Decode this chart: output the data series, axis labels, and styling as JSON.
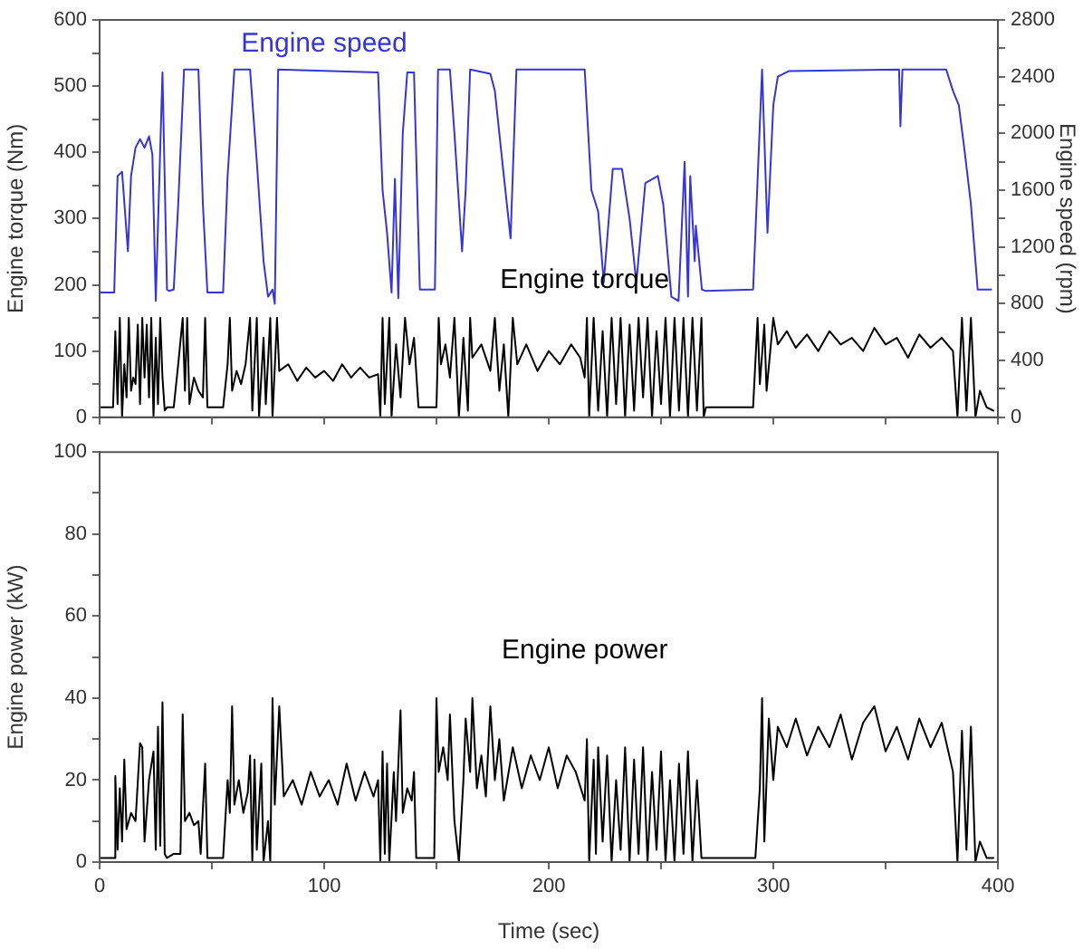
{
  "chart_data": [
    {
      "type": "line",
      "ylabel": "Engine torque (Nm)",
      "y2label": "Engine speed (rpm)",
      "xlim": [
        0,
        400
      ],
      "xticks": [
        0,
        {
          "value": 50,
          "label": null
        },
        100,
        {
          "value": 150,
          "label": null
        },
        200,
        {
          "value": 250,
          "label": null
        },
        300,
        {
          "value": 350,
          "label": null
        },
        400
      ],
      "ylim": [
        0,
        600
      ],
      "yticks": [
        0,
        {
          "value": 50,
          "label": null
        },
        100,
        {
          "value": 150,
          "label": null
        },
        200,
        {
          "value": 250,
          "label": null
        },
        300,
        {
          "value": 350,
          "label": null
        },
        400,
        {
          "value": 450,
          "label": null
        },
        500,
        {
          "value": 550,
          "label": null
        },
        600
      ],
      "y2lim": [
        0,
        2800
      ],
      "y2ticks": [
        0,
        {
          "value": 200,
          "label": null
        },
        400,
        {
          "value": 600,
          "label": null
        },
        800,
        {
          "value": 1000,
          "label": null
        },
        1200,
        {
          "value": 1400,
          "label": null
        },
        1600,
        {
          "value": 1800,
          "label": null
        },
        2000,
        {
          "value": 2200,
          "label": null
        },
        2400,
        {
          "value": 2600,
          "label": null
        },
        2800
      ],
      "tick_labels": "y",
      "series": [
        {
          "name": "Engine speed",
          "color": "#3535d8",
          "axis": "y2",
          "x": [
            0,
            6.5,
            8,
            10,
            12.6,
            14,
            16,
            18,
            20,
            22,
            23.5,
            25,
            28,
            30,
            31,
            33,
            35,
            37.6,
            44,
            46,
            48,
            55,
            57,
            60,
            67,
            70,
            73,
            75,
            77,
            78,
            79.5,
            124,
            126,
            128,
            130,
            131.5,
            133,
            135,
            137,
            140,
            142.6,
            149.3,
            150.7,
            156,
            158,
            161.4,
            163,
            165,
            174,
            176,
            180,
            183,
            185.6,
            216,
            219,
            222,
            224.5,
            228.5,
            232.6,
            236,
            239,
            243,
            248.6,
            251,
            254.6,
            257.8,
            260.5,
            262,
            263,
            265,
            265.5,
            268.2,
            270,
            291,
            295,
            297.4,
            300,
            302,
            307,
            356,
            356.6,
            357.5,
            377,
            380,
            382.6,
            385,
            388,
            391,
            397
          ],
          "values": [
            880,
            880,
            1700,
            1730,
            1170,
            1700,
            1900,
            1960,
            1900,
            1980,
            1850,
            820,
            2430,
            900,
            890,
            900,
            1500,
            2450,
            2450,
            1500,
            880,
            880,
            1700,
            2450,
            2450,
            1800,
            1100,
            850,
            900,
            800,
            2450,
            2430,
            1600,
            1300,
            880,
            1680,
            840,
            2000,
            2430,
            2430,
            900,
            900,
            2450,
            2450,
            2000,
            1170,
            1600,
            2450,
            2420,
            2300,
            1700,
            1260,
            2450,
            2450,
            1600,
            1450,
            950,
            1750,
            1750,
            1400,
            950,
            1650,
            1700,
            1500,
            850,
            820,
            1800,
            850,
            1700,
            1100,
            1350,
            900,
            890,
            900,
            2450,
            1300,
            2200,
            2400,
            2440,
            2450,
            2050,
            2450,
            2450,
            2300,
            2200,
            1900,
            1500,
            900,
            900
          ]
        },
        {
          "name": "Engine torque",
          "color": "#000000",
          "x": [
            0,
            6,
            7,
            8,
            9,
            10,
            11,
            12,
            13,
            14,
            15,
            16,
            17,
            18,
            19,
            20,
            21,
            22,
            23,
            24,
            25,
            26,
            27,
            28,
            29,
            30,
            33,
            35,
            37,
            38,
            39,
            40,
            42,
            44,
            46,
            47,
            48,
            55,
            57,
            58,
            59,
            61,
            63,
            65,
            67,
            68,
            70,
            71,
            73,
            74,
            76,
            77,
            79,
            80,
            84,
            88,
            92,
            96,
            100,
            104,
            108,
            112,
            116,
            120,
            124,
            125,
            126,
            127,
            129,
            130,
            132,
            134,
            136,
            138,
            140,
            142,
            150,
            151,
            152,
            154,
            156,
            158,
            160,
            162,
            164,
            165,
            166,
            170,
            174,
            176,
            178,
            180,
            182,
            184,
            186,
            190,
            195,
            200,
            205,
            210,
            214,
            216,
            217,
            218,
            220,
            222,
            224,
            226,
            228,
            230,
            232,
            234,
            236,
            238,
            240,
            242,
            244,
            246,
            248,
            250,
            252,
            254,
            256,
            258,
            260,
            262,
            264,
            266,
            268,
            269,
            270,
            291,
            293,
            294,
            296,
            297,
            300,
            302,
            306,
            310,
            315,
            320,
            325,
            330,
            335,
            340,
            345,
            350,
            355,
            360,
            365,
            370,
            375,
            380,
            382,
            384,
            386,
            388,
            390,
            392,
            395,
            398
          ],
          "values": [
            15,
            15,
            130,
            20,
            150,
            0,
            80,
            30,
            150,
            40,
            60,
            50,
            140,
            20,
            150,
            60,
            140,
            30,
            150,
            0,
            120,
            20,
            150,
            60,
            10,
            15,
            15,
            80,
            150,
            40,
            150,
            20,
            60,
            40,
            30,
            150,
            15,
            15,
            80,
            150,
            40,
            70,
            50,
            80,
            150,
            10,
            150,
            0,
            120,
            20,
            150,
            0,
            150,
            70,
            80,
            55,
            75,
            60,
            70,
            55,
            80,
            60,
            75,
            60,
            65,
            0,
            150,
            20,
            150,
            0,
            110,
            30,
            150,
            80,
            120,
            15,
            15,
            150,
            80,
            110,
            60,
            150,
            0,
            120,
            10,
            150,
            90,
            110,
            70,
            150,
            40,
            110,
            0,
            150,
            80,
            110,
            70,
            100,
            80,
            110,
            90,
            60,
            150,
            0,
            150,
            10,
            130,
            0,
            150,
            20,
            150,
            0,
            140,
            10,
            150,
            30,
            150,
            0,
            130,
            20,
            150,
            0,
            150,
            10,
            150,
            0,
            150,
            10,
            150,
            0,
            15,
            15,
            150,
            50,
            140,
            40,
            150,
            110,
            130,
            105,
            125,
            100,
            130,
            110,
            120,
            100,
            135,
            110,
            120,
            90,
            125,
            105,
            120,
            100,
            0,
            150,
            10,
            150,
            0,
            40,
            15,
            10
          ]
        }
      ]
    },
    {
      "type": "line",
      "xlabel": "Time (sec)",
      "ylabel": "Engine power (kW)",
      "xlim": [
        0,
        400
      ],
      "xticks": [
        0,
        {
          "value": 50,
          "label": null
        },
        100,
        {
          "value": 150,
          "label": null
        },
        200,
        {
          "value": 250,
          "label": null
        },
        300,
        {
          "value": 350,
          "label": null
        },
        400
      ],
      "ylim": [
        0,
        100
      ],
      "yticks": [
        0,
        {
          "value": 10,
          "label": null
        },
        20,
        {
          "value": 30,
          "label": null
        },
        40,
        {
          "value": 50,
          "label": null
        },
        60,
        {
          "value": 70,
          "label": null
        },
        80,
        {
          "value": 90,
          "label": null
        },
        100
      ],
      "series": [
        {
          "name": "Engine power",
          "color": "#000000",
          "x": [
            0,
            6.5,
            7,
            8,
            9,
            10,
            11,
            12,
            14,
            16,
            18,
            19,
            20,
            22,
            24,
            25,
            26,
            27,
            28,
            29,
            30,
            33,
            36,
            37,
            38,
            40,
            42,
            44,
            45,
            47,
            48,
            55,
            57,
            58,
            59,
            60,
            62,
            64,
            66,
            67,
            68,
            69,
            70,
            72,
            73,
            75,
            76,
            77,
            78,
            80,
            82,
            86,
            90,
            94,
            98,
            102,
            106,
            110,
            114,
            118,
            122,
            124,
            125,
            126,
            127,
            128,
            129,
            131,
            132,
            134,
            135,
            137,
            139,
            140,
            141,
            149,
            150,
            151,
            153,
            155,
            156,
            158,
            160,
            162,
            163,
            165,
            166,
            168,
            170,
            172,
            174,
            176,
            178,
            180,
            184,
            188,
            192,
            196,
            200,
            204,
            208,
            212,
            216,
            217,
            218,
            220,
            221,
            222,
            224,
            226,
            228,
            230,
            232,
            234,
            236,
            238,
            240,
            242,
            244,
            246,
            248,
            250,
            252,
            254,
            256,
            258,
            260,
            262,
            264,
            266,
            268,
            270,
            292,
            294,
            295,
            296,
            298,
            300,
            302,
            306,
            310,
            315,
            320,
            325,
            330,
            335,
            340,
            345,
            350,
            355,
            360,
            365,
            370,
            375,
            380,
            382,
            384,
            386,
            388,
            390,
            392,
            395,
            398
          ],
          "values": [
            1,
            1,
            21,
            3,
            18,
            5,
            25,
            8,
            12,
            10,
            29,
            28,
            5,
            20,
            27,
            3,
            33,
            4,
            39,
            2,
            1,
            2,
            2,
            36,
            10,
            12,
            9,
            10,
            2,
            24,
            1,
            1,
            20,
            12,
            38,
            14,
            20,
            12,
            17,
            26,
            0,
            25,
            3,
            24,
            0,
            10,
            0,
            40,
            14,
            38,
            16,
            20,
            14,
            22,
            16,
            20,
            14,
            24,
            15,
            22,
            16,
            20,
            0,
            27,
            2,
            24,
            0,
            22,
            10,
            37,
            12,
            18,
            15,
            22,
            1,
            1,
            40,
            22,
            28,
            20,
            36,
            10,
            0,
            20,
            35,
            22,
            40,
            18,
            26,
            16,
            38,
            20,
            30,
            15,
            28,
            18,
            26,
            20,
            28,
            18,
            26,
            22,
            15,
            30,
            0,
            25,
            2,
            28,
            5,
            26,
            0,
            20,
            3,
            28,
            0,
            25,
            2,
            28,
            0,
            22,
            3,
            27,
            0,
            20,
            0,
            24,
            2,
            27,
            0,
            20,
            1,
            1,
            1,
            18,
            40,
            5,
            35,
            20,
            33,
            28,
            35,
            26,
            33,
            28,
            36,
            25,
            34,
            38,
            27,
            33,
            25,
            35,
            28,
            34,
            22,
            0,
            32,
            3,
            33,
            0,
            5,
            1,
            1
          ]
        }
      ]
    }
  ]
}
